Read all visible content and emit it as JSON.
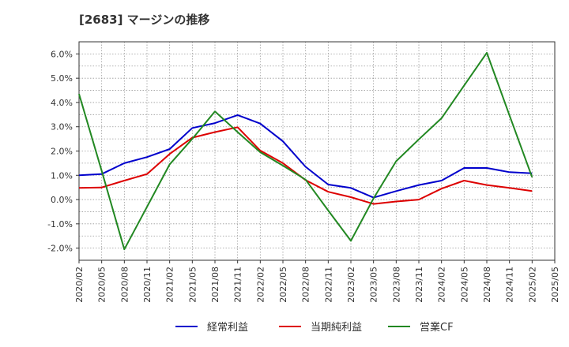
{
  "chart_data": {
    "type": "line",
    "title": "[2683]  マージンの推移",
    "x": [
      "2020/02",
      "2020/05",
      "2020/08",
      "2020/11",
      "2021/02",
      "2021/05",
      "2021/08",
      "2021/11",
      "2022/02",
      "2022/05",
      "2022/08",
      "2022/11",
      "2023/02",
      "2023/05",
      "2023/08",
      "2023/11",
      "2024/02",
      "2024/05",
      "2024/08",
      "2024/11",
      "2025/02",
      "2025/05"
    ],
    "y_ticks": [
      "6.0%",
      "5.0%",
      "4.0%",
      "3.0%",
      "2.0%",
      "1.0%",
      "0.0%",
      "-1.0%",
      "-2.0%"
    ],
    "ylim": [
      -2.5,
      6.5
    ],
    "grid": true,
    "legend_position": "bottom",
    "series": [
      {
        "name": "経常利益",
        "color": "#0000cc",
        "values": [
          1.0,
          1.05,
          1.5,
          1.75,
          2.08,
          2.95,
          3.15,
          3.48,
          3.13,
          2.4,
          1.35,
          0.62,
          0.48,
          0.08,
          0.35,
          0.6,
          0.78,
          1.3,
          1.3,
          1.13,
          1.08,
          null
        ]
      },
      {
        "name": "当期純利益",
        "color": "#dd0000",
        "values": [
          0.48,
          0.5,
          0.78,
          1.05,
          1.88,
          2.55,
          2.78,
          2.98,
          2.02,
          1.5,
          0.8,
          0.32,
          0.1,
          -0.18,
          -0.08,
          0.0,
          0.45,
          0.78,
          0.6,
          0.48,
          0.35,
          null
        ]
      },
      {
        "name": "営業CF",
        "color": "#228822",
        "values": [
          4.35,
          1.18,
          -2.05,
          -0.3,
          1.45,
          2.5,
          3.63,
          2.78,
          1.95,
          1.4,
          0.82,
          -0.45,
          -1.7,
          0.05,
          1.58,
          2.48,
          3.35,
          4.7,
          6.05,
          3.47,
          0.92,
          null
        ]
      }
    ]
  }
}
